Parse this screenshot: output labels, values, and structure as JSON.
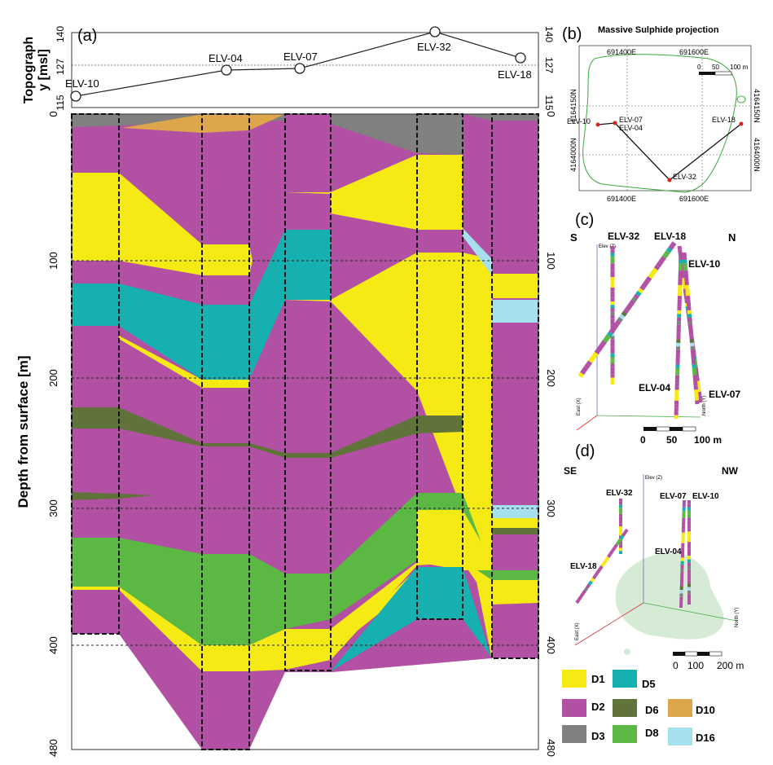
{
  "panel_a": {
    "letter": "(a)",
    "topo_axis_label_1": "Topograph",
    "topo_axis_label_2": "y [msl]",
    "topo_ticks": [
      "140",
      "127",
      "115"
    ],
    "depth_axis_label": "Depth from surface [m]",
    "depth_ticks": [
      "0",
      "100",
      "200",
      "300",
      "400",
      "480"
    ],
    "wells": [
      {
        "name": "ELV-10",
        "elev": 116
      },
      {
        "name": "ELV-04",
        "elev": 126
      },
      {
        "name": "ELV-07",
        "elev": 126.5
      },
      {
        "name": "ELV-32",
        "elev": 139
      },
      {
        "name": "ELV-18",
        "elev": 130
      }
    ]
  },
  "panel_b": {
    "letter": "(b)",
    "title": "Massive Sulphide projection",
    "east_ticks": [
      "691400E",
      "691600E"
    ],
    "north_ticks": [
      "4164150N",
      "4164000N"
    ],
    "scale": [
      "0",
      "50",
      "100 m"
    ],
    "wells": [
      "ELV-10",
      "ELV-07",
      "ELV-04",
      "ELV-18",
      "ELV-32"
    ]
  },
  "panel_c": {
    "letter": "(c)",
    "dir_left": "S",
    "dir_right": "N",
    "axis_labels": [
      "Elev (Z)",
      "East (X)",
      "North (Y)"
    ],
    "wells": [
      "ELV-32",
      "ELV-18",
      "ELV-10",
      "ELV-04",
      "ELV-07"
    ],
    "scale": [
      "0",
      "50",
      "100 m"
    ]
  },
  "panel_d": {
    "letter": "(d)",
    "dir_left": "SE",
    "dir_right": "NW",
    "axis_labels": [
      "Elev (Z)",
      "East (X)",
      "North (Y)"
    ],
    "wells": [
      "ELV-32",
      "ELV-07",
      "ELV-10",
      "ELV-04",
      "ELV-18"
    ],
    "scale": [
      "0",
      "100",
      "200 m"
    ]
  },
  "legend": [
    {
      "code": "D1",
      "color": "#f5ea14"
    },
    {
      "code": "D5",
      "color": "#17b0b0"
    },
    {
      "code": "D2",
      "color": "#b250a4"
    },
    {
      "code": "D6",
      "color": "#60733a"
    },
    {
      "code": "D10",
      "color": "#dea64a"
    },
    {
      "code": "D3",
      "color": "#808080"
    },
    {
      "code": "D8",
      "color": "#5bb842"
    },
    {
      "code": "D16",
      "color": "#a6e0ef"
    }
  ]
}
